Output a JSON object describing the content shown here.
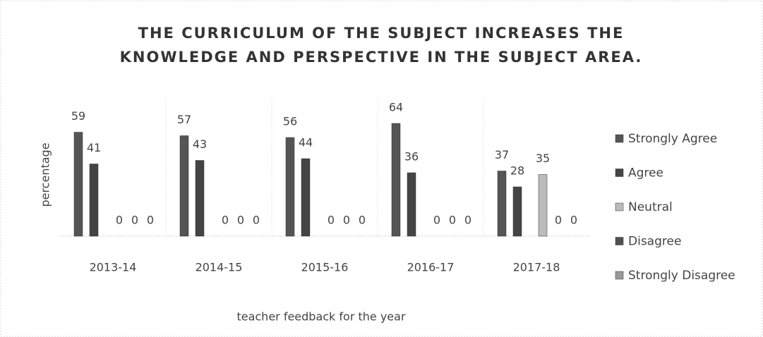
{
  "chart_data": {
    "type": "bar",
    "title": "THE CURRICULUM OF THE SUBJECT INCREASES THE KNOWLEDGE AND PERSPECTIVE IN THE SUBJECT AREA.",
    "x_label": "teacher feedback for the year",
    "y_label": "percentage",
    "categories": [
      "2013-14",
      "2014-15",
      "2015-16",
      "2016-17",
      "2017-18"
    ],
    "series": [
      {
        "name": "Strongly Agree",
        "color": "#555555",
        "values": [
          59,
          57,
          56,
          64,
          37
        ]
      },
      {
        "name": "Agree",
        "color": "#444444",
        "values": [
          41,
          43,
          44,
          36,
          28
        ]
      },
      {
        "name": "Neutral",
        "color": "#bbbbbb",
        "values": [
          0,
          0,
          0,
          0,
          35
        ]
      },
      {
        "name": "Disagree",
        "color": "#505050",
        "values": [
          0,
          0,
          0,
          0,
          0
        ]
      },
      {
        "name": "Strongly Disagree",
        "color": "#999999",
        "values": [
          0,
          0,
          0,
          0,
          0
        ]
      }
    ],
    "ylim": [
      0,
      70
    ],
    "legend": "right"
  }
}
